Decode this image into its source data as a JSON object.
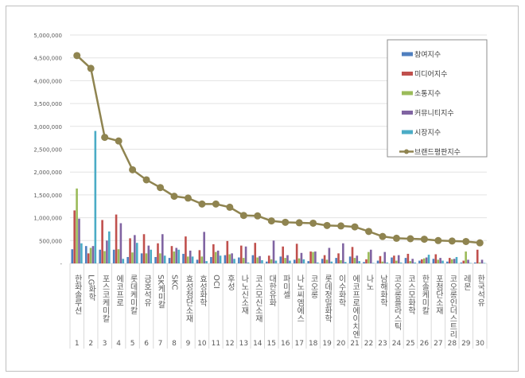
{
  "chart_data": {
    "type": "bar",
    "title": "",
    "xlabel": "",
    "ylabel": "",
    "ylim": [
      0,
      5000000
    ],
    "yticks": [
      "-",
      "500,000",
      "1,000,000",
      "1,500,000",
      "2,000,000",
      "2,500,000",
      "3,000,000",
      "3,500,000",
      "4,000,000",
      "4,500,000",
      "5,000,000"
    ],
    "grid": true,
    "legend_position": "top-right",
    "categories": [
      "한화솔루션",
      "LG화학",
      "포스코케미칼",
      "에코프로",
      "롯데케미칼",
      "금호석유",
      "SK케미칼",
      "SKC",
      "효성첨단소재",
      "효성화학",
      "OCI",
      "후성",
      "나노신소재",
      "코스모신소재",
      "대한유화",
      "파미셀",
      "나노씨엠에스",
      "코오롱",
      "롯데정밀화학",
      "이수화학",
      "에코프로에이치엔",
      "나노",
      "남해화학",
      "코오롱플라스틱",
      "코스모화학",
      "한솔케미칼",
      "포첨단소재",
      "코오롱인더스트리",
      "레몬",
      "한국석유"
    ],
    "ranks": [
      "1",
      "2",
      "3",
      "4",
      "5",
      "6",
      "7",
      "8",
      "9",
      "10",
      "11",
      "12",
      "13",
      "14",
      "15",
      "16",
      "17",
      "18",
      "19",
      "20",
      "21",
      "22",
      "23",
      "24",
      "25",
      "26",
      "27",
      "28",
      "29",
      "30"
    ],
    "series": [
      {
        "name": "참여지수",
        "type": "bar",
        "color": "#4f7fbf",
        "values": [
          310000,
          380000,
          300000,
          300000,
          140000,
          220000,
          140000,
          120000,
          210000,
          80000,
          140000,
          180000,
          130000,
          180000,
          40000,
          150000,
          80000,
          50000,
          100000,
          120000,
          150000,
          30000,
          60000,
          130000,
          120000,
          60000,
          100000,
          40000,
          20000,
          20000
        ]
      },
      {
        "name": "미디어지수",
        "type": "bar",
        "color": "#c0504d",
        "values": [
          1160000,
          220000,
          950000,
          1070000,
          550000,
          640000,
          440000,
          380000,
          590000,
          290000,
          420000,
          490000,
          390000,
          450000,
          170000,
          370000,
          430000,
          260000,
          180000,
          220000,
          360000,
          90000,
          160000,
          170000,
          210000,
          90000,
          200000,
          120000,
          60000,
          300000
        ]
      },
      {
        "name": "소통지수",
        "type": "bar",
        "color": "#9bbb59",
        "values": [
          1640000,
          340000,
          270000,
          310000,
          240000,
          220000,
          220000,
          260000,
          150000,
          150000,
          250000,
          200000,
          120000,
          130000,
          90000,
          120000,
          110000,
          250000,
          80000,
          70000,
          120000,
          250000,
          40000,
          60000,
          50000,
          110000,
          80000,
          90000,
          260000,
          20000
        ]
      },
      {
        "name": "커뮤니티지수",
        "type": "bar",
        "color": "#8064a2",
        "values": [
          980000,
          380000,
          500000,
          880000,
          620000,
          390000,
          640000,
          340000,
          280000,
          690000,
          280000,
          220000,
          370000,
          160000,
          500000,
          180000,
          230000,
          260000,
          340000,
          440000,
          170000,
          300000,
          250000,
          180000,
          100000,
          130000,
          120000,
          100000,
          80000,
          80000
        ]
      },
      {
        "name": "시장지수",
        "type": "bar",
        "color": "#4bacc6",
        "values": [
          440000,
          2900000,
          700000,
          100000,
          450000,
          300000,
          170000,
          300000,
          150000,
          50000,
          170000,
          100000,
          20000,
          70000,
          60000,
          60000,
          90000,
          20000,
          40000,
          30000,
          50000,
          10000,
          20000,
          20000,
          20000,
          190000,
          60000,
          140000,
          10000,
          10000
        ]
      },
      {
        "name": "브랜드평판지수",
        "type": "line",
        "color": "#8f8450",
        "values": [
          4550000,
          4270000,
          2760000,
          2680000,
          2050000,
          1830000,
          1660000,
          1470000,
          1430000,
          1300000,
          1300000,
          1230000,
          1050000,
          1040000,
          930000,
          900000,
          890000,
          880000,
          830000,
          820000,
          800000,
          700000,
          590000,
          550000,
          540000,
          530000,
          500000,
          490000,
          480000,
          450000
        ]
      }
    ]
  }
}
